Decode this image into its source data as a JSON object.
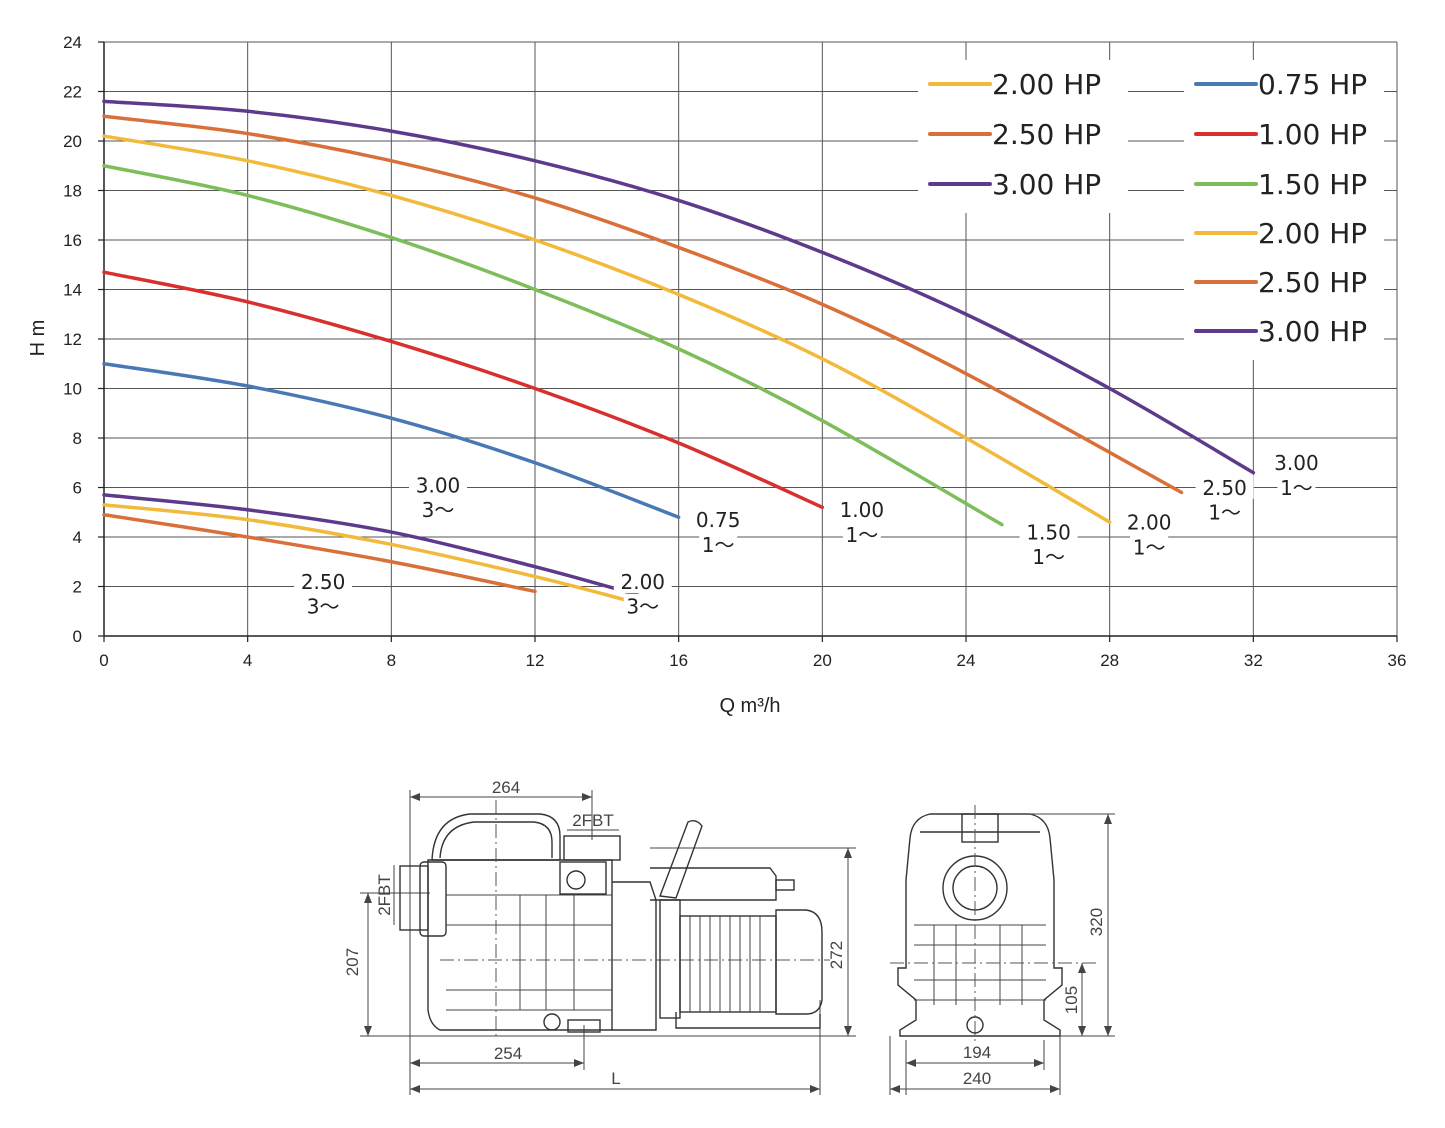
{
  "chart_data": {
    "type": "line",
    "xlabel": "Q  m³/h",
    "ylabel": "H  m",
    "xlim": [
      0,
      36
    ],
    "ylim": [
      0,
      24
    ],
    "xticks": [
      0,
      4,
      8,
      12,
      16,
      20,
      24,
      28,
      32,
      36
    ],
    "yticks": [
      0,
      2,
      4,
      6,
      8,
      10,
      12,
      14,
      16,
      18,
      20,
      22,
      24
    ],
    "grid": true,
    "legend": {
      "placement": "top-right",
      "columns": [
        [
          {
            "label": "2.00 HP",
            "color": "#f2b93b"
          },
          {
            "label": "2.50 HP",
            "color": "#d9703a"
          },
          {
            "label": "3.00 HP",
            "color": "#5e3a8c"
          }
        ],
        [
          {
            "label": "0.75 HP",
            "color": "#4a78b5"
          },
          {
            "label": "1.00 HP",
            "color": "#d7302f"
          },
          {
            "label": "1.50 HP",
            "color": "#7dbd5a"
          },
          {
            "label": "2.00 HP",
            "color": "#f2b93b"
          },
          {
            "label": "2.50 HP",
            "color": "#d9703a"
          },
          {
            "label": "3.00 HP",
            "color": "#5e3a8c"
          }
        ]
      ]
    },
    "series": [
      {
        "id": "1ph-075",
        "color": "#4a78b5",
        "label_top": "0.75",
        "label_bottom": "1～",
        "x": [
          0,
          4,
          8,
          12,
          16
        ],
        "y": [
          11.0,
          10.1,
          8.8,
          7.0,
          4.8
        ]
      },
      {
        "id": "1ph-100",
        "color": "#d7302f",
        "label_top": "1.00",
        "label_bottom": "1～",
        "x": [
          0,
          4,
          8,
          12,
          16,
          20
        ],
        "y": [
          14.7,
          13.5,
          11.9,
          10.0,
          7.8,
          5.2
        ]
      },
      {
        "id": "1ph-150",
        "color": "#7dbd5a",
        "label_top": "1.50",
        "label_bottom": "1～",
        "x": [
          0,
          4,
          8,
          12,
          16,
          20,
          25
        ],
        "y": [
          19.0,
          17.8,
          16.1,
          14.0,
          11.6,
          8.7,
          4.5
        ]
      },
      {
        "id": "1ph-200",
        "color": "#f2b93b",
        "label_top": "2.00",
        "label_bottom": "1～",
        "x": [
          0,
          4,
          8,
          12,
          16,
          20,
          24,
          28
        ],
        "y": [
          20.2,
          19.2,
          17.8,
          16.0,
          13.8,
          11.2,
          8.0,
          4.6
        ]
      },
      {
        "id": "1ph-250",
        "color": "#d9703a",
        "label_top": "2.50",
        "label_bottom": "1～",
        "x": [
          0,
          4,
          8,
          12,
          16,
          20,
          24,
          30
        ],
        "y": [
          21.0,
          20.3,
          19.2,
          17.7,
          15.7,
          13.4,
          10.6,
          5.8
        ]
      },
      {
        "id": "1ph-300",
        "color": "#5e3a8c",
        "label_top": "3.00",
        "label_bottom": "1～",
        "x": [
          0,
          4,
          8,
          12,
          16,
          20,
          24,
          28,
          32
        ],
        "y": [
          21.6,
          21.2,
          20.4,
          19.2,
          17.6,
          15.5,
          13.0,
          10.0,
          6.6
        ]
      },
      {
        "id": "3ph-250",
        "color": "#d9703a",
        "label_top": "2.50",
        "label_bottom": "3～",
        "x": [
          0,
          4,
          8,
          12
        ],
        "y": [
          4.9,
          4.0,
          3.0,
          1.8
        ]
      },
      {
        "id": "3ph-200",
        "color": "#f2b93b",
        "label_top": "",
        "label_bottom": "",
        "x": [
          0,
          4,
          8,
          12,
          14.8
        ],
        "y": [
          5.3,
          4.7,
          3.7,
          2.4,
          1.35
        ]
      },
      {
        "id": "3ph-300",
        "color": "#5e3a8c",
        "label_top": "3.00",
        "label_bottom": "3～",
        "x": [
          0,
          4,
          8,
          12,
          15
        ],
        "y": [
          5.7,
          5.1,
          4.2,
          2.8,
          1.6
        ]
      }
    ],
    "terminal_label": {
      "top": "2.00",
      "bottom": "3～"
    }
  },
  "drawings": {
    "side_view": {
      "dims": [
        "264",
        "2FBT",
        "2FBT",
        "207",
        "272",
        "254",
        "L"
      ]
    },
    "front_view": {
      "dims": [
        "320",
        "105",
        "194",
        "240"
      ]
    }
  }
}
